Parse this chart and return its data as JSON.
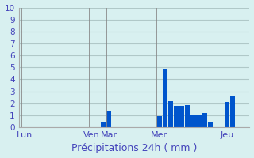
{
  "title": "Précipitations 24h ( mm )",
  "ylabel": "",
  "background_color": "#d8f0f0",
  "bar_color": "#0055cc",
  "grid_color": "#b0c8c8",
  "ylim": [
    0,
    10
  ],
  "yticks": [
    0,
    1,
    2,
    3,
    4,
    5,
    6,
    7,
    8,
    9,
    10
  ],
  "day_labels": [
    "Lun",
    "Ven",
    "Mar",
    "Mer",
    "Jeu"
  ],
  "day_positions": [
    0,
    12,
    15,
    24,
    36
  ],
  "num_bars": 40,
  "bar_values": [
    0,
    0,
    0,
    0,
    0,
    0,
    0,
    0,
    0,
    0,
    0,
    0,
    0,
    0,
    0.4,
    1.4,
    0,
    0,
    0,
    0,
    0,
    0,
    0,
    0,
    0.9,
    4.9,
    2.2,
    1.8,
    1.8,
    1.85,
    1.0,
    1.0,
    1.2,
    0.4,
    0,
    0,
    2.1,
    2.6,
    0,
    0
  ],
  "tick_label_color": "#4444bb",
  "title_color": "#4444bb",
  "title_fontsize": 9,
  "tick_fontsize": 7.5,
  "day_label_fontsize": 8
}
